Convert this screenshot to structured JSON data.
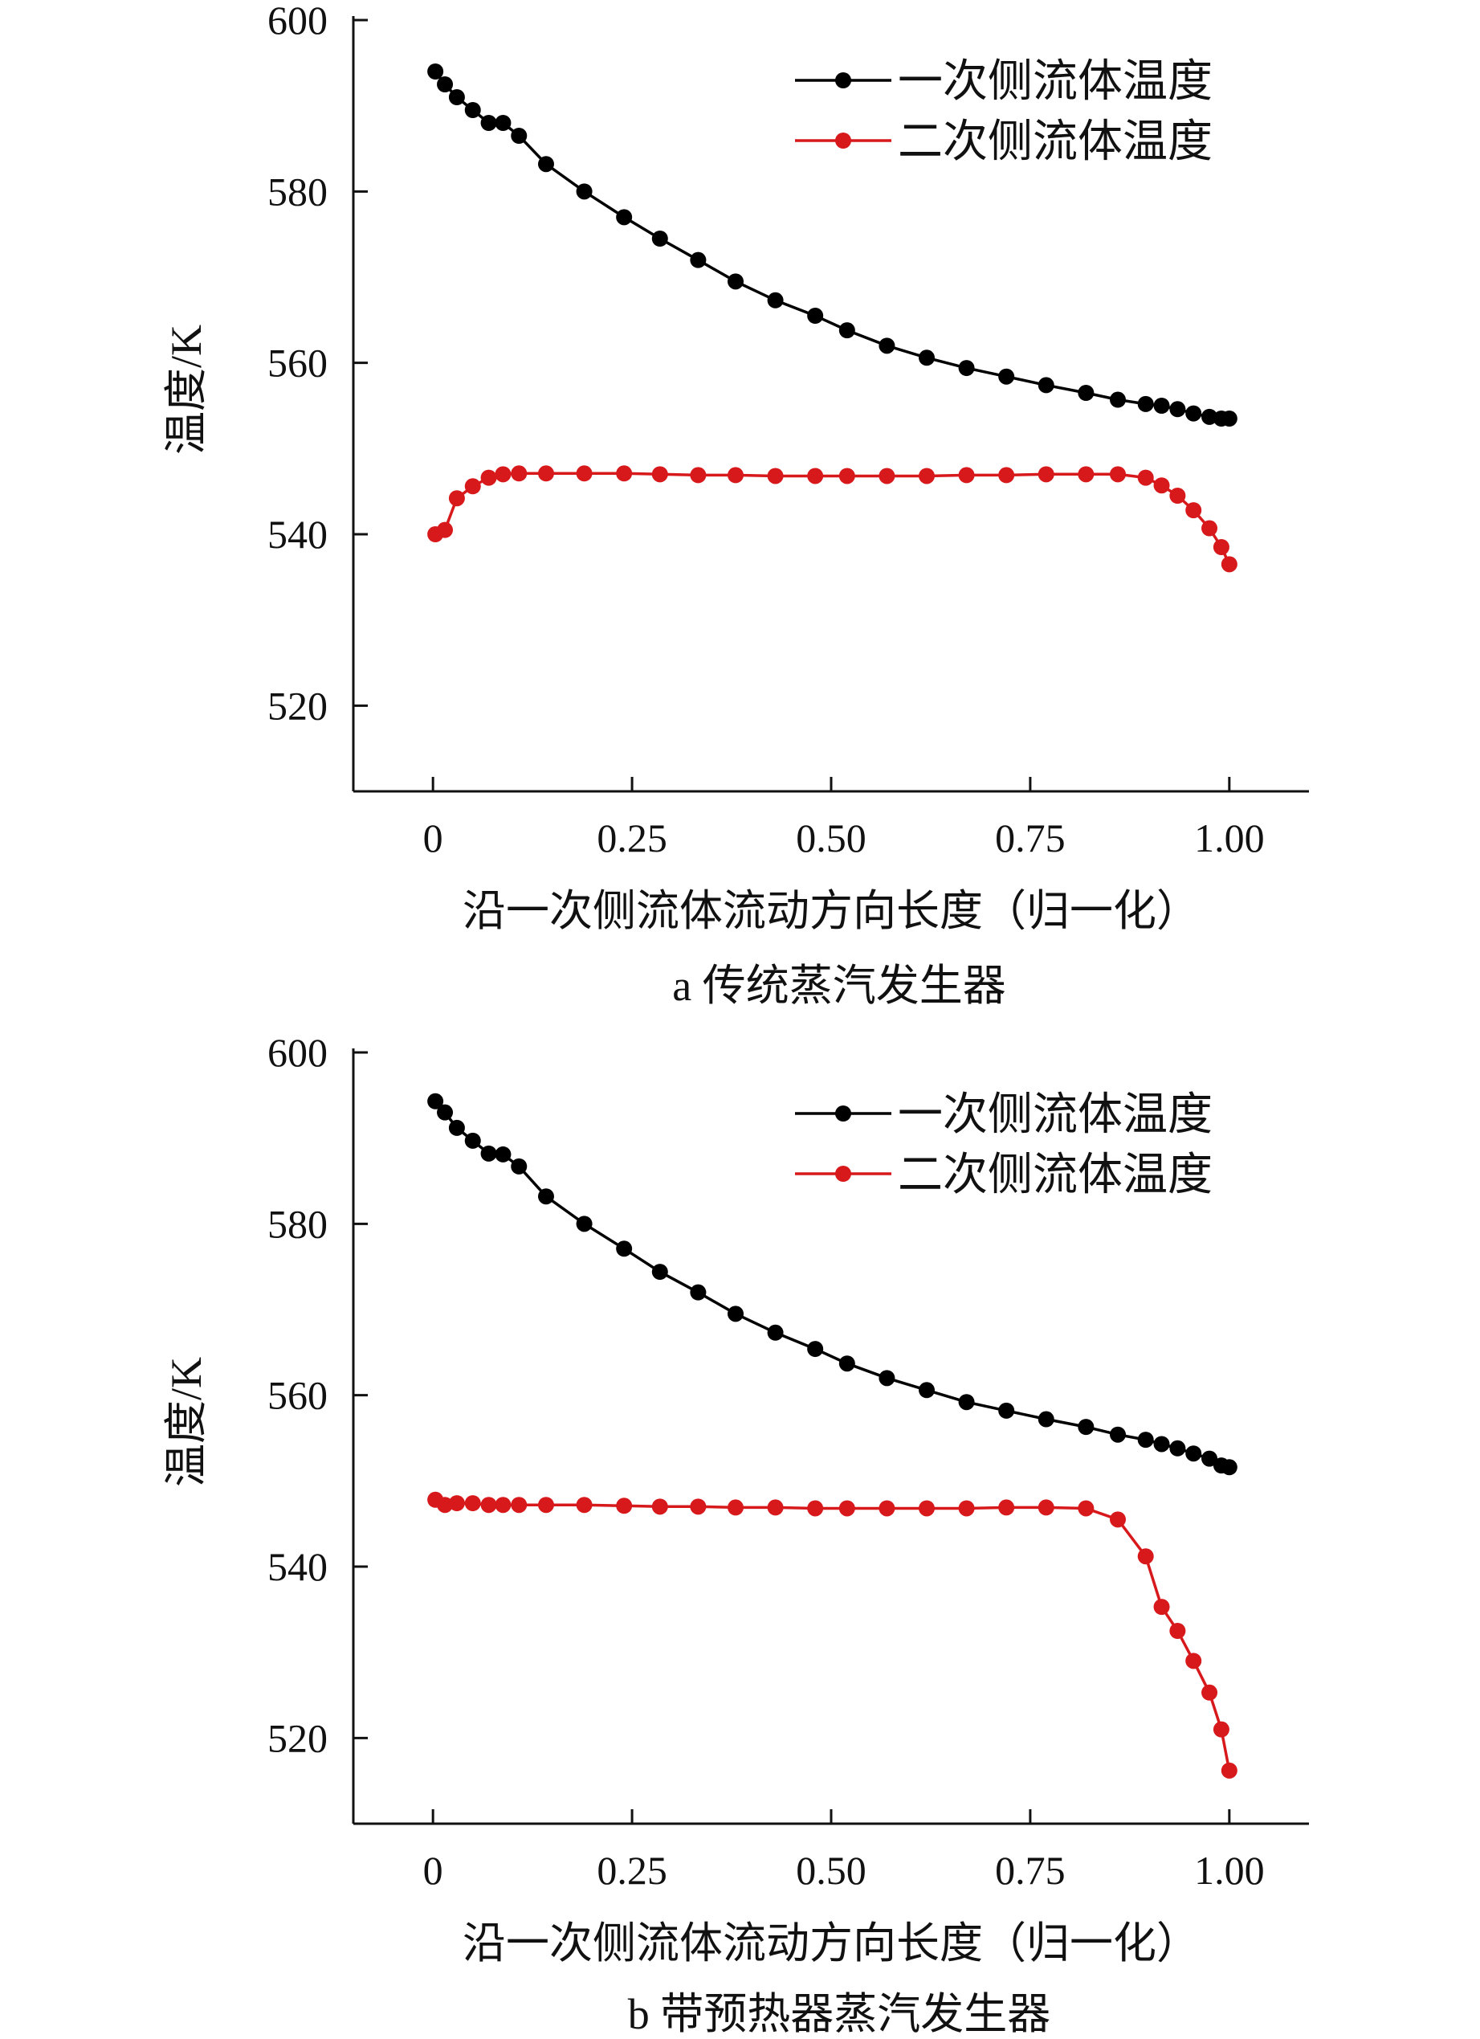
{
  "figure": {
    "colors": {
      "primary": "#000000",
      "secondary": "#d7191c",
      "axis": "#111111"
    }
  },
  "chart_data": [
    {
      "type": "line",
      "caption": "a  传统蒸汽发生器",
      "xlabel": "沿一次侧流体流动方向长度（归一化）",
      "ylabel": "温度/K",
      "xlim": [
        -0.1,
        1.1
      ],
      "ylim": [
        510,
        600
      ],
      "xticks": [
        0,
        0.25,
        0.5,
        0.75,
        1.0
      ],
      "xtick_labels": [
        "0",
        "0.25",
        "0.50",
        "0.75",
        "1.00"
      ],
      "yticks": [
        520,
        540,
        560,
        580,
        600
      ],
      "ytick_labels": [
        "520",
        "540",
        "560",
        "580",
        "600"
      ],
      "grid": false,
      "legend_position": "top-right",
      "series": [
        {
          "name": "一次侧流体温度",
          "color": "#000000",
          "x": [
            0.003,
            0.015,
            0.03,
            0.05,
            0.07,
            0.088,
            0.108,
            0.142,
            0.19,
            0.24,
            0.285,
            0.333,
            0.38,
            0.43,
            0.48,
            0.52,
            0.57,
            0.62,
            0.67,
            0.72,
            0.77,
            0.82,
            0.86,
            0.895,
            0.915,
            0.935,
            0.955,
            0.975,
            0.99,
            1.0
          ],
          "y": [
            594.0,
            592.5,
            591.0,
            589.5,
            588.0,
            588.0,
            586.5,
            583.2,
            580.0,
            577.0,
            574.5,
            572.0,
            569.5,
            567.3,
            565.5,
            563.8,
            562.0,
            560.6,
            559.4,
            558.4,
            557.4,
            556.5,
            555.7,
            555.2,
            555.0,
            554.6,
            554.1,
            553.7,
            553.5,
            553.5
          ]
        },
        {
          "name": "二次侧流体温度",
          "color": "#d7191c",
          "x": [
            0.003,
            0.015,
            0.03,
            0.05,
            0.07,
            0.088,
            0.108,
            0.142,
            0.19,
            0.24,
            0.285,
            0.333,
            0.38,
            0.43,
            0.48,
            0.52,
            0.57,
            0.62,
            0.67,
            0.72,
            0.77,
            0.82,
            0.86,
            0.895,
            0.915,
            0.935,
            0.955,
            0.975,
            0.99,
            1.0
          ],
          "y": [
            540.0,
            540.5,
            544.2,
            545.6,
            546.6,
            547.0,
            547.1,
            547.1,
            547.1,
            547.1,
            547.0,
            546.9,
            546.9,
            546.8,
            546.8,
            546.8,
            546.8,
            546.8,
            546.9,
            546.9,
            547.0,
            547.0,
            547.0,
            546.6,
            545.7,
            544.5,
            542.8,
            540.7,
            538.5,
            536.5
          ]
        }
      ]
    },
    {
      "type": "line",
      "caption": "b  带预热器蒸汽发生器",
      "xlabel": "沿一次侧流体流动方向长度（归一化）",
      "ylabel": "温度/K",
      "xlim": [
        -0.1,
        1.1
      ],
      "ylim": [
        510,
        600
      ],
      "xticks": [
        0,
        0.25,
        0.5,
        0.75,
        1.0
      ],
      "xtick_labels": [
        "0",
        "0.25",
        "0.50",
        "0.75",
        "1.00"
      ],
      "yticks": [
        520,
        540,
        560,
        580,
        600
      ],
      "ytick_labels": [
        "520",
        "540",
        "560",
        "580",
        "600"
      ],
      "grid": false,
      "legend_position": "top-right",
      "series": [
        {
          "name": "一次侧流体温度",
          "color": "#000000",
          "x": [
            0.003,
            0.015,
            0.03,
            0.05,
            0.07,
            0.088,
            0.108,
            0.142,
            0.19,
            0.24,
            0.285,
            0.333,
            0.38,
            0.43,
            0.48,
            0.52,
            0.57,
            0.62,
            0.67,
            0.72,
            0.77,
            0.82,
            0.86,
            0.895,
            0.915,
            0.935,
            0.955,
            0.975,
            0.99,
            1.0
          ],
          "y": [
            594.3,
            593.0,
            591.2,
            589.7,
            588.2,
            588.1,
            586.7,
            583.2,
            580.0,
            577.1,
            574.4,
            572.0,
            569.5,
            567.3,
            565.4,
            563.7,
            562.0,
            560.6,
            559.2,
            558.2,
            557.2,
            556.3,
            555.4,
            554.8,
            554.3,
            553.8,
            553.2,
            552.6,
            551.8,
            551.6
          ]
        },
        {
          "name": "二次侧流体温度",
          "color": "#d7191c",
          "x": [
            0.003,
            0.015,
            0.03,
            0.05,
            0.07,
            0.088,
            0.108,
            0.142,
            0.19,
            0.24,
            0.285,
            0.333,
            0.38,
            0.43,
            0.48,
            0.52,
            0.57,
            0.62,
            0.67,
            0.72,
            0.77,
            0.82,
            0.86,
            0.895,
            0.915,
            0.935,
            0.955,
            0.975,
            0.99,
            1.0
          ],
          "y": [
            547.8,
            547.2,
            547.4,
            547.4,
            547.2,
            547.2,
            547.2,
            547.2,
            547.2,
            547.1,
            547.0,
            547.0,
            546.9,
            546.9,
            546.8,
            546.8,
            546.8,
            546.8,
            546.8,
            546.9,
            546.9,
            546.8,
            545.5,
            541.2,
            535.3,
            532.5,
            529.0,
            525.3,
            521.0,
            516.2
          ]
        }
      ]
    }
  ]
}
